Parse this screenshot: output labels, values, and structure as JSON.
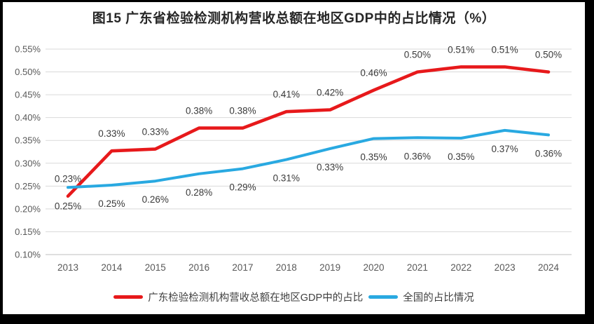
{
  "figure": {
    "title": "图15  广东省检验检测机构营收总额在地区GDP中的占比情况（%）"
  },
  "chart_data": {
    "type": "line",
    "title": "图15  广东省检验检测机构营收总额在地区GDP中的占比情况（%）",
    "categories": [
      "2013",
      "2014",
      "2015",
      "2016",
      "2017",
      "2018",
      "2019",
      "2020",
      "2021",
      "2022",
      "2023",
      "2024"
    ],
    "y_axis": {
      "min": 0.1,
      "max": 0.55,
      "step": 0.05,
      "unit": "%",
      "tick_labels": [
        "0.55%",
        "0.50%",
        "0.45%",
        "0.40%",
        "0.35%",
        "0.30%",
        "0.25%",
        "0.20%",
        "0.15%",
        "0.10%"
      ]
    },
    "grid": true,
    "legend_position": "bottom",
    "series": [
      {
        "name": "广东检验检测机构营收总额在地区GDP中的占比",
        "color": "#e7191b",
        "label_position": "above",
        "values": [
          0.23,
          0.33,
          0.33,
          0.38,
          0.38,
          0.41,
          0.42,
          0.46,
          0.5,
          0.51,
          0.51,
          0.5
        ],
        "labels": [
          "0.23%",
          "0.33%",
          "0.33%",
          "0.38%",
          "0.38%",
          "0.41%",
          "0.42%",
          "0.46%",
          "0.50%",
          "0.51%",
          "0.51%",
          "0.50%"
        ],
        "plot_values": [
          0.228,
          0.327,
          0.331,
          0.377,
          0.377,
          0.413,
          0.417,
          0.46,
          0.5,
          0.511,
          0.511,
          0.5
        ]
      },
      {
        "name": "全国的占比情况",
        "color": "#29a9e1",
        "label_position": "below",
        "values": [
          0.25,
          0.25,
          0.26,
          0.28,
          0.29,
          0.31,
          0.33,
          0.35,
          0.36,
          0.35,
          0.37,
          0.36
        ],
        "labels": [
          "0.25%",
          "0.25%",
          "0.26%",
          "0.28%",
          "0.29%",
          "0.31%",
          "0.33%",
          "0.35%",
          "0.36%",
          "0.35%",
          "0.37%",
          "0.36%"
        ],
        "plot_values": [
          0.247,
          0.252,
          0.261,
          0.277,
          0.288,
          0.308,
          0.332,
          0.354,
          0.356,
          0.355,
          0.372,
          0.362
        ]
      }
    ],
    "colors": {
      "gridline": "#d9d9d9",
      "axis_line": "#bfbfbf",
      "tick_text": "#595959",
      "data_label_text": "#3a3a3a"
    }
  }
}
